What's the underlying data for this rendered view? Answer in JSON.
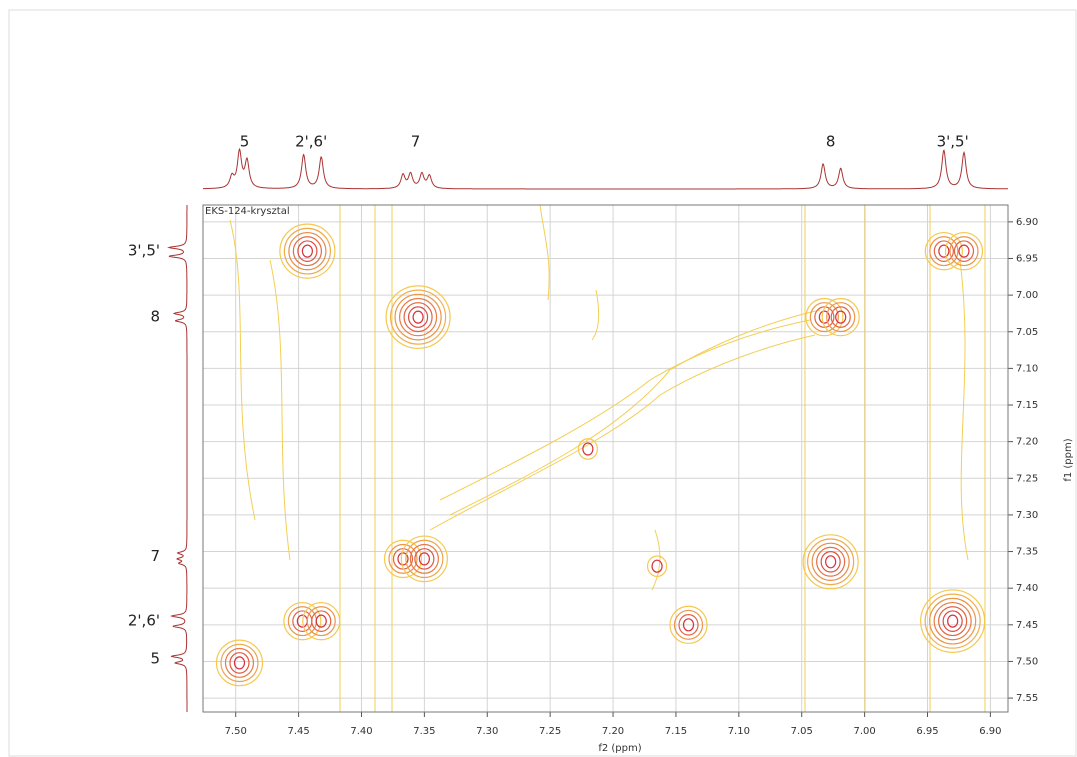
{
  "chart_data": {
    "type": "contour",
    "annotation": "EKS-124-krysztal",
    "x_label": "f2 (ppm)",
    "y_label": "f1 (ppm)",
    "xlim": [
      7.526,
      6.886
    ],
    "ylim": [
      6.877,
      7.569
    ],
    "xticks": [
      {
        "value": 7.5,
        "label": "7.50"
      },
      7.45,
      {
        "value": 7.4,
        "label": "7.40"
      },
      7.35,
      {
        "value": 7.3,
        "label": "7.30"
      },
      7.25,
      {
        "value": 7.2,
        "label": "7.20"
      },
      7.15,
      {
        "value": 7.1,
        "label": "7.10"
      },
      7.05,
      {
        "value": 7.0,
        "label": "7.00"
      },
      6.95,
      {
        "value": 6.9,
        "label": "6.90"
      }
    ],
    "yticks": [
      {
        "value": 6.9,
        "label": "6.90"
      },
      6.95,
      {
        "value": 7.0,
        "label": "7.00"
      },
      7.05,
      {
        "value": 7.1,
        "label": "7.10"
      },
      7.15,
      {
        "value": 7.2,
        "label": "7.20"
      },
      7.25,
      {
        "value": 7.3,
        "label": "7.30"
      },
      7.35,
      {
        "value": 7.4,
        "label": "7.40"
      },
      7.45,
      {
        "value": 7.5,
        "label": "7.50"
      },
      7.55
    ],
    "grid": true,
    "peaks": [
      {
        "x": 7.443,
        "y": 6.94,
        "intensity": 6
      },
      {
        "x": 7.355,
        "y": 7.03,
        "intensity": 7
      },
      {
        "x": 7.032,
        "y": 7.03,
        "intensity": 4
      },
      {
        "x": 7.019,
        "y": 7.03,
        "intensity": 4
      },
      {
        "x": 6.937,
        "y": 6.94,
        "intensity": 4
      },
      {
        "x": 6.921,
        "y": 6.94,
        "intensity": 4
      },
      {
        "x": 7.367,
        "y": 7.36,
        "intensity": 4
      },
      {
        "x": 7.35,
        "y": 7.36,
        "intensity": 5
      },
      {
        "x": 7.027,
        "y": 7.364,
        "intensity": 6
      },
      {
        "x": 6.93,
        "y": 7.445,
        "intensity": 7
      },
      {
        "x": 7.447,
        "y": 7.445,
        "intensity": 4
      },
      {
        "x": 7.432,
        "y": 7.445,
        "intensity": 4
      },
      {
        "x": 7.497,
        "y": 7.502,
        "intensity": 5
      },
      {
        "x": 7.14,
        "y": 7.45,
        "intensity": 4
      },
      {
        "x": 7.22,
        "y": 7.21,
        "intensity": 2
      },
      {
        "x": 7.165,
        "y": 7.37,
        "intensity": 2
      }
    ],
    "top_trace": {
      "peaks": [
        {
          "x": 7.503,
          "h": 0.25
        },
        {
          "x": 7.497,
          "h": 0.8
        },
        {
          "x": 7.491,
          "h": 0.6
        },
        {
          "x": 7.446,
          "h": 0.75
        },
        {
          "x": 7.432,
          "h": 0.7
        },
        {
          "x": 7.367,
          "h": 0.3
        },
        {
          "x": 7.361,
          "h": 0.32
        },
        {
          "x": 7.352,
          "h": 0.32
        },
        {
          "x": 7.346,
          "h": 0.28
        },
        {
          "x": 7.033,
          "h": 0.55
        },
        {
          "x": 7.019,
          "h": 0.45
        },
        {
          "x": 6.937,
          "h": 0.85
        },
        {
          "x": 6.921,
          "h": 0.8
        }
      ],
      "labels": [
        {
          "text": "5",
          "x": 7.493
        },
        {
          "text": "2',6'",
          "x": 7.44
        },
        {
          "text": "7",
          "x": 7.357
        },
        {
          "text": "8",
          "x": 7.027
        },
        {
          "text": "3',5'",
          "x": 6.93
        }
      ]
    },
    "left_trace": {
      "peaks": [
        {
          "x": 6.935,
          "h": 0.7
        },
        {
          "x": 6.947,
          "h": 0.7
        },
        {
          "x": 7.025,
          "h": 0.5
        },
        {
          "x": 7.035,
          "h": 0.45
        },
        {
          "x": 7.352,
          "h": 0.35
        },
        {
          "x": 7.36,
          "h": 0.35
        },
        {
          "x": 7.366,
          "h": 0.3
        },
        {
          "x": 7.438,
          "h": 0.6
        },
        {
          "x": 7.452,
          "h": 0.55
        },
        {
          "x": 7.493,
          "h": 0.6
        },
        {
          "x": 7.502,
          "h": 0.45
        }
      ],
      "labels": [
        {
          "text": "3',5'",
          "x": 6.94
        },
        {
          "text": "8",
          "x": 7.03
        },
        {
          "text": "7",
          "x": 7.357
        },
        {
          "text": "2',6'",
          "x": 7.445
        },
        {
          "text": "5",
          "x": 7.497
        }
      ]
    }
  }
}
